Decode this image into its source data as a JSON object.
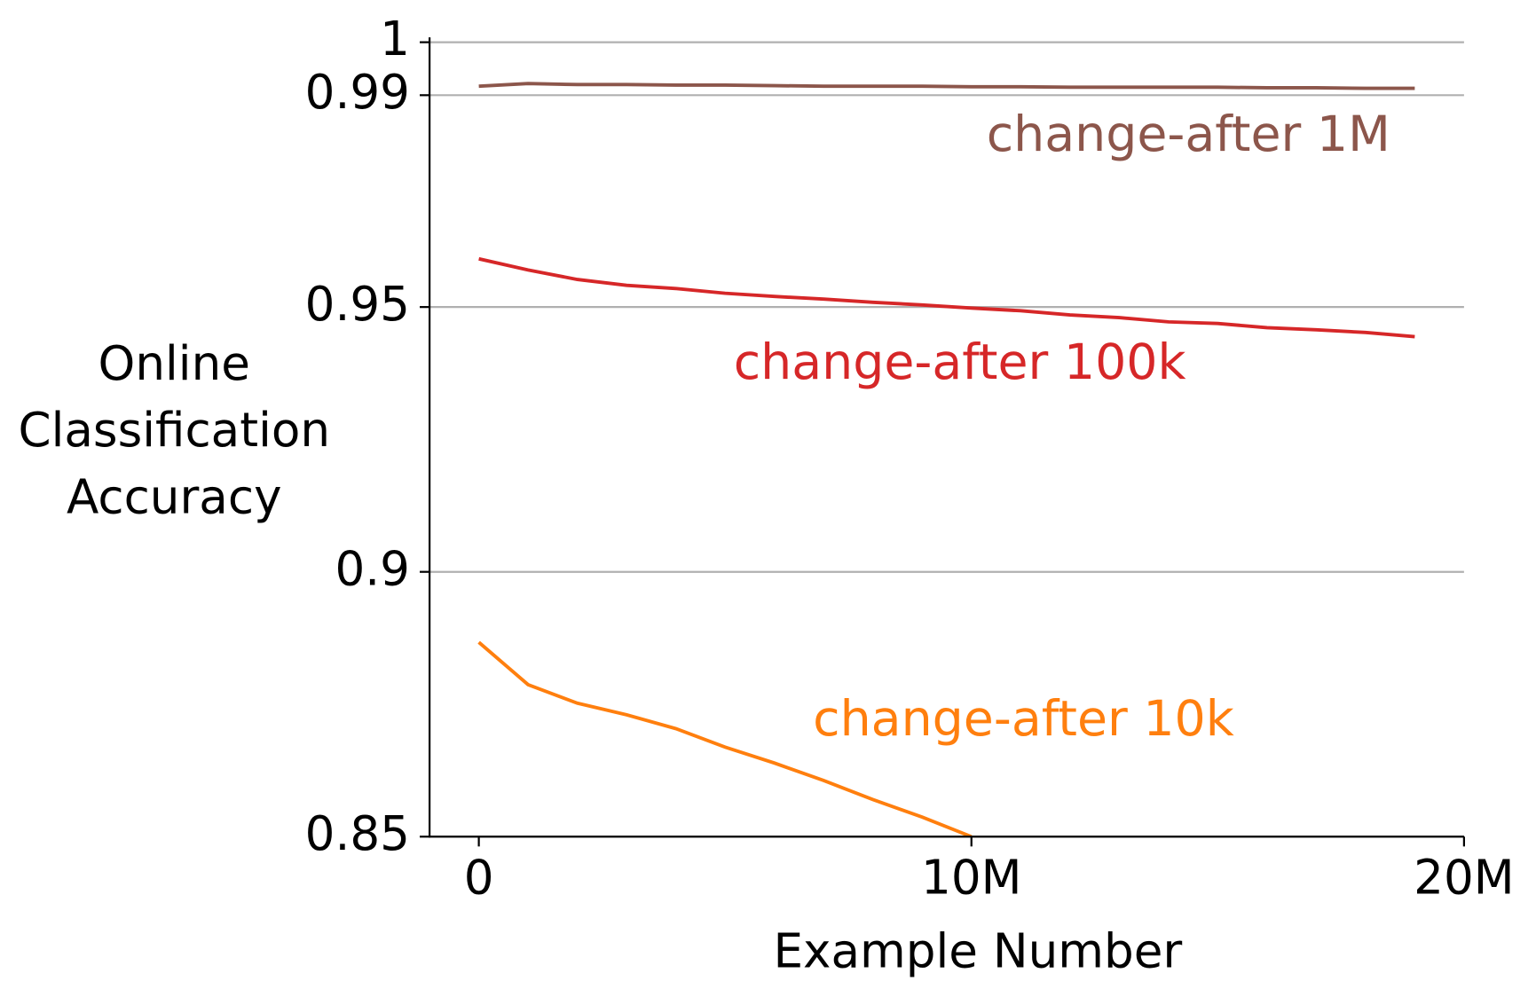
{
  "chart_data": {
    "type": "line",
    "xlabel": "Example Number",
    "ylabel": "Online\nClassification\nAccuracy",
    "x": [
      0,
      1000000,
      2000000,
      3000000,
      4000000,
      5000000,
      6000000,
      7000000,
      8000000,
      9000000,
      10000000,
      11000000,
      12000000,
      13000000,
      14000000,
      15000000,
      16000000,
      17000000,
      18000000,
      19000000
    ],
    "series": [
      {
        "name": "change-after 1M",
        "color": "#8c564b",
        "values": [
          0.9917,
          0.9922,
          0.992,
          0.992,
          0.9919,
          0.9919,
          0.9918,
          0.9917,
          0.9917,
          0.9917,
          0.9916,
          0.9916,
          0.9915,
          0.9915,
          0.9915,
          0.9915,
          0.9914,
          0.9914,
          0.9913,
          0.9913
        ]
      },
      {
        "name": "change-after 100k",
        "color": "#d62728",
        "values": [
          0.9591,
          0.957,
          0.9552,
          0.9541,
          0.9535,
          0.9526,
          0.952,
          0.9515,
          0.9509,
          0.9504,
          0.9498,
          0.9493,
          0.9485,
          0.948,
          0.9472,
          0.9469,
          0.9461,
          0.9457,
          0.9452,
          0.9444
        ]
      },
      {
        "name": "change-after 10k",
        "color": "#ff7f0e",
        "values": [
          0.8867,
          0.8787,
          0.8752,
          0.873,
          0.8704,
          0.8669,
          0.8639,
          0.8606,
          0.857,
          0.8537,
          0.85,
          null,
          null,
          null,
          null,
          null,
          null,
          null,
          null,
          null
        ]
      }
    ],
    "xlim": [
      -1000000,
      20000000
    ],
    "xticks": [
      0,
      {
        "value": 10000000,
        "label": "10M"
      },
      {
        "value": 20000000,
        "label": "20M"
      }
    ],
    "ylim": [
      0.85,
      1
    ],
    "yticks": [
      0.85,
      0.9,
      0.95,
      0.99,
      1
    ],
    "grid": true
  }
}
